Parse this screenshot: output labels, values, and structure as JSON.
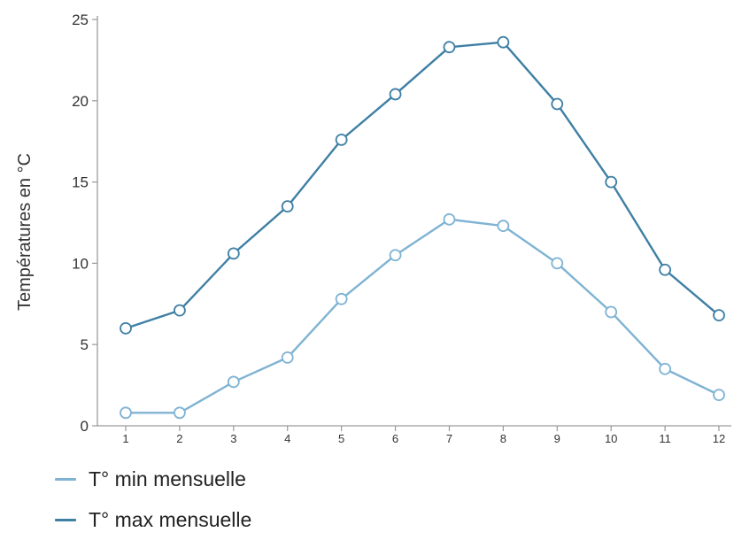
{
  "chart_data": {
    "type": "line",
    "title": "",
    "xlabel": "",
    "ylabel": "Températures en °C",
    "x": [
      1,
      2,
      3,
      4,
      5,
      6,
      7,
      8,
      9,
      10,
      11,
      12
    ],
    "xticks": [
      "1",
      "2",
      "3",
      "4",
      "5",
      "6",
      "7",
      "8",
      "9",
      "10",
      "11",
      "12"
    ],
    "yticks": [
      "0",
      "5",
      "10",
      "15",
      "20",
      "25"
    ],
    "ylim": [
      0,
      25
    ],
    "xlim": [
      1,
      12
    ],
    "grid": false,
    "legend_position": "bottom-left",
    "series": [
      {
        "name": "T° min mensuelle",
        "color": "#7fb3d3",
        "values": [
          0.8,
          0.8,
          2.7,
          4.2,
          7.8,
          10.5,
          12.7,
          12.3,
          10.0,
          7.0,
          3.5,
          1.9
        ]
      },
      {
        "name": "T° max mensuelle",
        "color": "#3e7fa4",
        "values": [
          6.0,
          7.1,
          10.6,
          13.5,
          17.6,
          20.4,
          23.3,
          23.6,
          19.8,
          15.0,
          9.6,
          6.8
        ]
      }
    ]
  }
}
